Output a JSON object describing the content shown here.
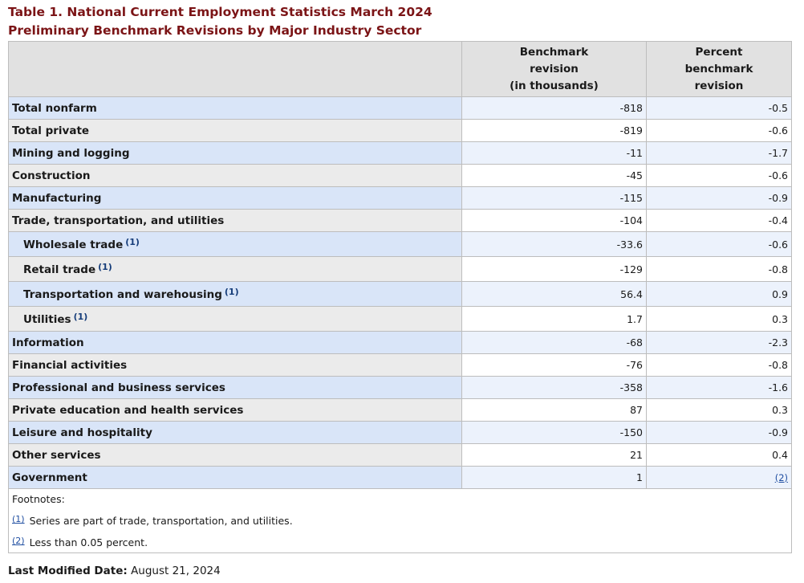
{
  "title": {
    "line1": "Table 1. National Current Employment Statistics March 2024",
    "line2": "Preliminary Benchmark Revisions by Major Industry Sector"
  },
  "table": {
    "columns": [
      "",
      "Benchmark\nrevision\n(in thousands)",
      "Percent\nbenchmark\nrevision"
    ],
    "col2_lines": [
      "Benchmark",
      "revision",
      "(in thousands)"
    ],
    "col3_lines": [
      "Percent",
      "benchmark",
      "revision"
    ],
    "rows": [
      {
        "label": "Total nonfarm",
        "revision": "-818",
        "percent": "-0.5"
      },
      {
        "label": "Total private",
        "revision": "-819",
        "percent": "-0.6"
      },
      {
        "label": "Mining and logging",
        "revision": "-11",
        "percent": "-1.7"
      },
      {
        "label": "Construction",
        "revision": "-45",
        "percent": "-0.6"
      },
      {
        "label": "Manufacturing",
        "revision": "-115",
        "percent": "-0.9"
      },
      {
        "label": "Trade, transportation, and utilities",
        "revision": "-104",
        "percent": "-0.4"
      },
      {
        "label": "Wholesale trade",
        "footnote": "(1)",
        "revision": "-33.6",
        "percent": "-0.6"
      },
      {
        "label": "Retail trade",
        "footnote": "(1)",
        "revision": "-129",
        "percent": "-0.8"
      },
      {
        "label": "Transportation and warehousing",
        "footnote": "(1)",
        "revision": "56.4",
        "percent": "0.9"
      },
      {
        "label": "Utilities",
        "footnote": "(1)",
        "revision": "1.7",
        "percent": "0.3"
      },
      {
        "label": "Information",
        "revision": "-68",
        "percent": "-2.3"
      },
      {
        "label": "Financial activities",
        "revision": "-76",
        "percent": "-0.8"
      },
      {
        "label": "Professional and business services",
        "revision": "-358",
        "percent": "-1.6"
      },
      {
        "label": "Private education and health services",
        "revision": "87",
        "percent": "0.3"
      },
      {
        "label": "Leisure and hospitality",
        "revision": "-150",
        "percent": "-0.9"
      },
      {
        "label": "Other services",
        "revision": "21",
        "percent": "0.4"
      },
      {
        "label": "Government",
        "revision": "1",
        "percent": "(2)"
      }
    ]
  },
  "footnotes": {
    "heading": "Footnotes:",
    "items": [
      {
        "mark": "(1)",
        "text": "Series are part of trade, transportation, and utilities."
      },
      {
        "mark": "(2)",
        "text": "Less than 0.05 percent."
      }
    ]
  },
  "last_modified": {
    "label": "Last Modified Date:",
    "value": "August 21, 2024"
  },
  "colors": {
    "title": "#7b1416",
    "row_odd_header": "#d9e5f8",
    "row_odd_cell": "#ecf2fc",
    "row_even_header": "#ebebeb",
    "header_bg": "#e1e1e1",
    "link": "#1f4ea1"
  }
}
